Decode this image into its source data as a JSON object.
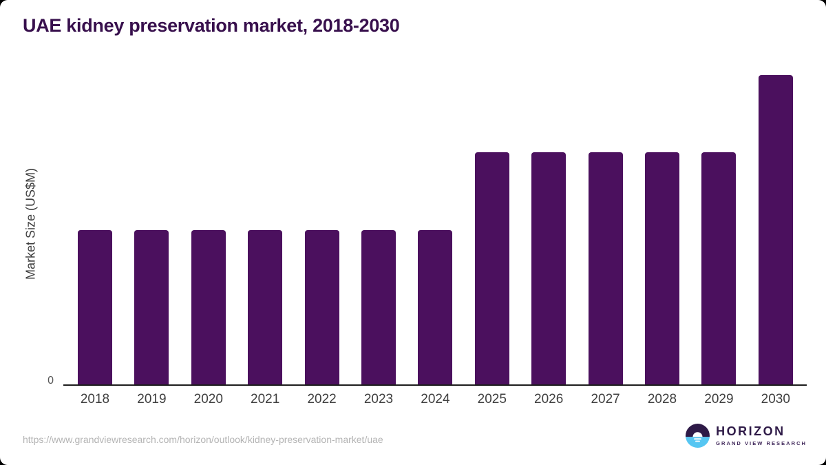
{
  "chart_data": {
    "type": "bar",
    "title": "UAE kidney preservation market, 2018-2030",
    "categories": [
      "2018",
      "2019",
      "2020",
      "2021",
      "2022",
      "2023",
      "2024",
      "2025",
      "2026",
      "2027",
      "2028",
      "2029",
      "2030"
    ],
    "values": [
      1,
      1,
      1,
      1,
      1,
      1,
      1,
      1.5,
      1.5,
      1.5,
      1.5,
      1.5,
      2
    ],
    "values_note": "Y axis shows only 0; bar values are relative estimates from bar heights (ratio 1 : 1.5 : 2)",
    "xlabel": "",
    "ylabel": "Market Size (US$M)",
    "ylim": [
      0,
      2.05
    ],
    "y_tick_labels": [
      "0"
    ],
    "grid": false,
    "legend": false
  },
  "axis": {
    "zero_label": "0"
  },
  "footer": {
    "source_url": "https://www.grandviewresearch.com/horizon/outlook/kidney-preservation-market/uae",
    "logo": {
      "brand": "HORIZON",
      "sub_brand": "GRAND VIEW RESEARCH"
    }
  },
  "colors": {
    "bar": "#4b105e",
    "title": "#38104d",
    "axis_line": "#1c1c1c",
    "tick_labels": "#404040",
    "url_text": "#b4b4b4",
    "logo_dark_purple": "#2e1a47",
    "logo_light_blue": "#56c6f2"
  }
}
